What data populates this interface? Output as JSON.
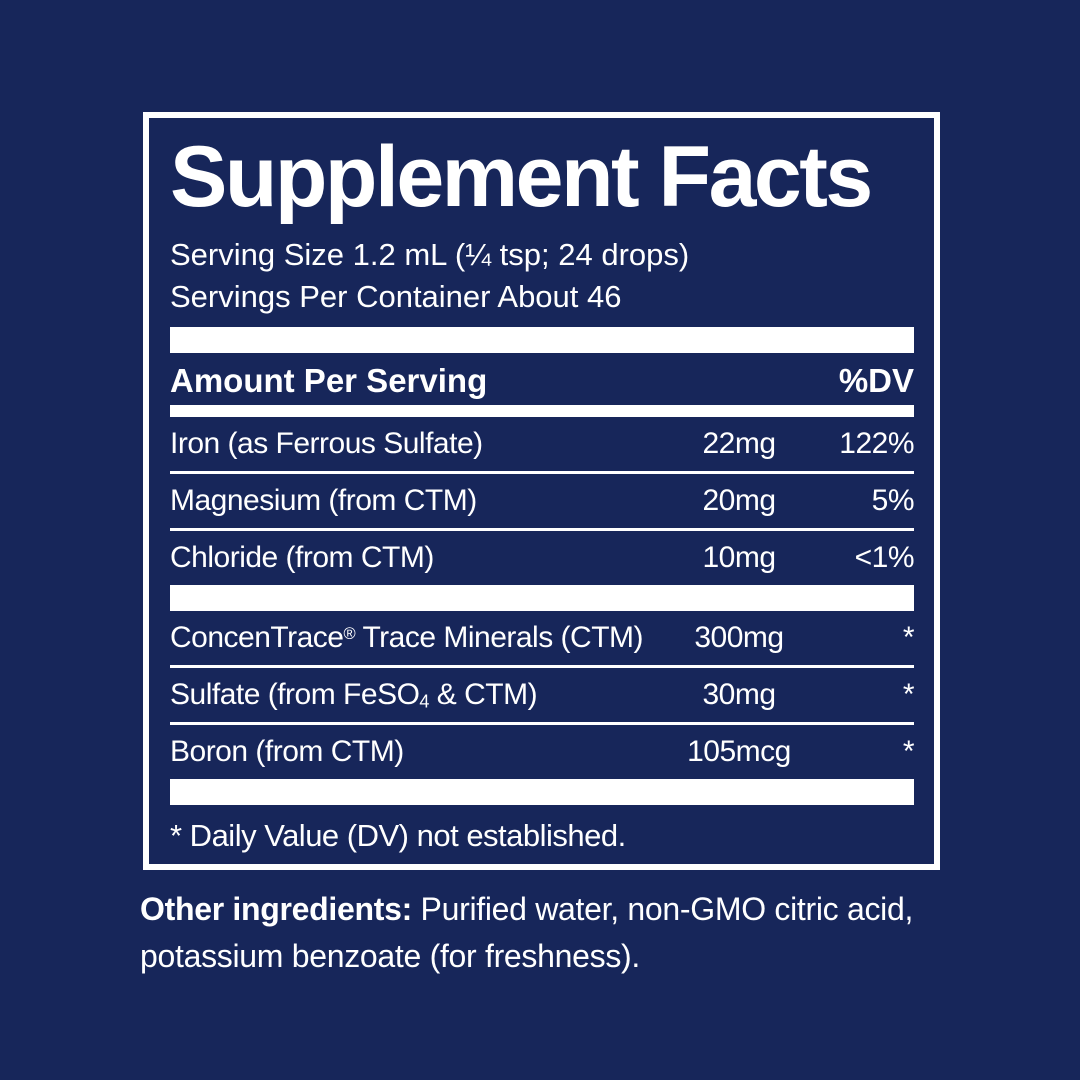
{
  "label": {
    "title": "Supplement Facts",
    "serving_size": "Serving Size 1.2 mL (¼ tsp; 24 drops)",
    "servings_per_container": "Servings Per Container About 46",
    "header": {
      "amount_per_serving": "Amount Per Serving",
      "dv": "%DV"
    },
    "rows": [
      {
        "group": 1,
        "name_segments": [
          {
            "t": "Iron (as Ferrous Sulfate)"
          }
        ],
        "amount": "22mg",
        "dv": "122%"
      },
      {
        "group": 1,
        "name_segments": [
          {
            "t": "Magnesium (from CTM)"
          }
        ],
        "amount": "20mg",
        "dv": "5%"
      },
      {
        "group": 1,
        "name_segments": [
          {
            "t": "Chloride (from CTM)"
          }
        ],
        "amount": "10mg",
        "dv": "<1%"
      },
      {
        "group": 2,
        "name_segments": [
          {
            "t": "ConcenTrace"
          },
          {
            "t": "®",
            "style": "sup"
          },
          {
            "t": " Trace Minerals (CTM)"
          }
        ],
        "amount": "300mg",
        "dv": "*"
      },
      {
        "group": 2,
        "name_segments": [
          {
            "t": "Sulfate (from FeSO"
          },
          {
            "t": "4",
            "style": "sub"
          },
          {
            "t": " & CTM)"
          }
        ],
        "amount": "30mg",
        "dv": "*"
      },
      {
        "group": 2,
        "name_segments": [
          {
            "t": "Boron (from CTM)"
          }
        ],
        "amount": "105mcg",
        "dv": "*"
      }
    ],
    "footnote": "* Daily Value (DV) not established.",
    "other_ingredients": {
      "lead": "Other ingredients:",
      "text": " Purified water, non-GMO citric acid, potassium benzoate (for freshness)."
    },
    "colors": {
      "background": "#17265a",
      "text": "#ffffff",
      "rule": "#ffffff"
    }
  }
}
